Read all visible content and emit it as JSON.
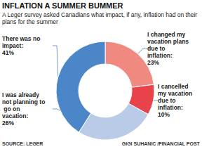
{
  "chart_data": {
    "type": "pie",
    "title": "INFLATION A SUMMER BUMMER",
    "subtitle": "A Leger survey asked Canadians what impact, if any, inflation had on their plans for the summer",
    "categories": [
      "I changed my vacation plans due to inflation:",
      "I cancelled my vacation due to inflation:",
      "I was already not planning to go on vacation:",
      "There was no impact:"
    ],
    "values": [
      23,
      10,
      26,
      41
    ],
    "value_labels": [
      "23%",
      "10%",
      "26%",
      "41%"
    ],
    "colors": [
      "#f08a80",
      "#e8434b",
      "#b9cbe6",
      "#4a86c8"
    ],
    "data_labels": true,
    "source": "SOURCE: LEGER",
    "credit": "GIGI SUHANIC /FINANCIAL POST"
  }
}
